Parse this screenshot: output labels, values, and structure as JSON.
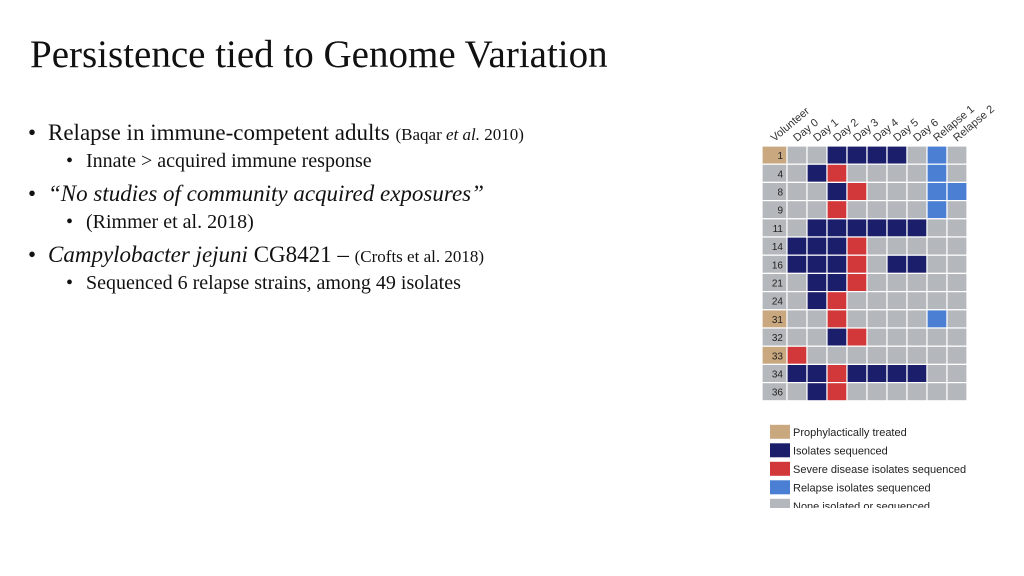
{
  "title": "Persistence tied to Genome Variation",
  "bullets": [
    {
      "level": 1,
      "segments": [
        {
          "text": "Relapse in immune-competent adults "
        },
        {
          "text": "(Baqar ",
          "small": true
        },
        {
          "text": "et al.",
          "small": true,
          "italic": true
        },
        {
          "text": " 2010)",
          "small": true
        }
      ]
    },
    {
      "level": 2,
      "segments": [
        {
          "text": "Innate > acquired immune response"
        }
      ]
    },
    {
      "level": 1,
      "segments": [
        {
          "text": "“No studies of community acquired exposures”",
          "italic": true
        }
      ]
    },
    {
      "level": 2,
      "segments": [
        {
          "text": "(Rimmer et al. 2018)"
        }
      ]
    },
    {
      "level": 1,
      "segments": [
        {
          "text": "Campylobacter jejuni",
          "italic": true
        },
        {
          "text": " CG8421 – "
        },
        {
          "text": "(Crofts et al. 2018)",
          "small": true
        }
      ]
    },
    {
      "level": 2,
      "segments": [
        {
          "text": "Sequenced 6 relapse strains, among 49 isolates"
        }
      ]
    }
  ],
  "figure": {
    "columns": [
      "Volunteer",
      "Day 0",
      "Day 1",
      "Day 2",
      "Day 3",
      "Day 4",
      "Day 5",
      "Day 6",
      "Relapse 1",
      "Relapse 2"
    ],
    "legend": [
      {
        "label": "Prophylactically treated",
        "color": "#c9a77f"
      },
      {
        "label": "Isolates sequenced",
        "color": "#1b1f6b"
      },
      {
        "label": "Severe disease isolates sequenced",
        "color": "#d2373a"
      },
      {
        "label": "Relapse isolates sequenced",
        "color": "#4a7fd4"
      },
      {
        "label": "None isolated or sequenced",
        "color": "#b4b8bc"
      }
    ],
    "rows": [
      {
        "volunteer": "1",
        "label_status": 0,
        "cells": [
          4,
          4,
          1,
          1,
          1,
          1,
          4,
          3,
          4
        ]
      },
      {
        "volunteer": "4",
        "label_status": 4,
        "cells": [
          4,
          1,
          2,
          4,
          4,
          4,
          4,
          3,
          4
        ]
      },
      {
        "volunteer": "8",
        "label_status": 4,
        "cells": [
          4,
          4,
          1,
          2,
          4,
          4,
          4,
          3,
          3
        ]
      },
      {
        "volunteer": "9",
        "label_status": 4,
        "cells": [
          4,
          4,
          2,
          4,
          4,
          4,
          4,
          3,
          4
        ]
      },
      {
        "volunteer": "11",
        "label_status": 4,
        "cells": [
          4,
          1,
          1,
          1,
          1,
          1,
          1,
          4,
          4
        ]
      },
      {
        "volunteer": "14",
        "label_status": 4,
        "cells": [
          1,
          1,
          1,
          2,
          4,
          4,
          4,
          4,
          4
        ]
      },
      {
        "volunteer": "16",
        "label_status": 4,
        "cells": [
          1,
          1,
          1,
          2,
          4,
          1,
          1,
          4,
          4
        ]
      },
      {
        "volunteer": "21",
        "label_status": 4,
        "cells": [
          4,
          1,
          1,
          2,
          4,
          4,
          4,
          4,
          4
        ]
      },
      {
        "volunteer": "24",
        "label_status": 4,
        "cells": [
          4,
          1,
          2,
          4,
          4,
          4,
          4,
          4,
          4
        ]
      },
      {
        "volunteer": "31",
        "label_status": 0,
        "cells": [
          4,
          4,
          2,
          4,
          4,
          4,
          4,
          3,
          4
        ]
      },
      {
        "volunteer": "32",
        "label_status": 4,
        "cells": [
          4,
          4,
          1,
          2,
          4,
          4,
          4,
          4,
          4
        ]
      },
      {
        "volunteer": "33",
        "label_status": 0,
        "cells": [
          2,
          4,
          4,
          4,
          4,
          4,
          4,
          4,
          4
        ]
      },
      {
        "volunteer": "34",
        "label_status": 4,
        "cells": [
          1,
          1,
          2,
          1,
          1,
          1,
          1,
          4,
          4
        ]
      },
      {
        "volunteer": "36",
        "label_status": 4,
        "cells": [
          4,
          1,
          2,
          4,
          4,
          4,
          4,
          4,
          4
        ]
      }
    ]
  }
}
